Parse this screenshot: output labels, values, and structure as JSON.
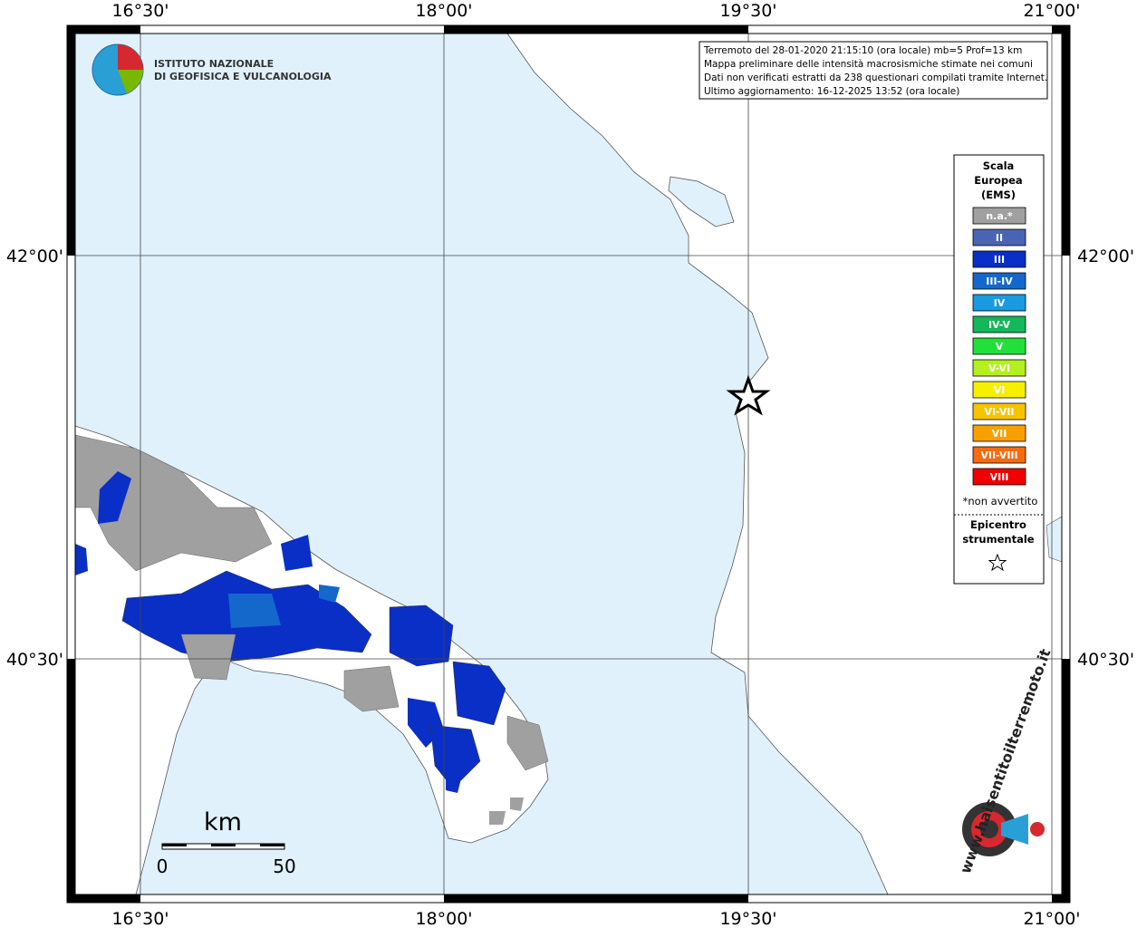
{
  "header": {
    "lines": [
      "Terremoto del 28-01-2020 21:15:10 (ora locale) mb=5 Prof=13 km",
      "Mappa preliminare delle intensità macrosismiche stimate nei comuni",
      "Dati non verificati estratti da 238 questionari compilati tramite Internet.",
      "Ultimo aggiornamento: 16-12-2025 13:52 (ora locale)"
    ]
  },
  "logo": {
    "name_lines": [
      "ISTITUTO NAZIONALE",
      "DI GEOFISICA E VULCANOLOGIA"
    ],
    "site": "www.haisentitoilterremoto.it"
  },
  "graticule": {
    "longitudes": [
      "16°30'",
      "18°00'",
      "19°30'",
      "21°00'"
    ],
    "latitudes": [
      "42°00'",
      "40°30'"
    ]
  },
  "legend": {
    "title_lines": [
      "Scala",
      "Europea",
      "(EMS)"
    ],
    "items": [
      {
        "label": "n.a.*",
        "color": "#a0a0a0"
      },
      {
        "label": "II",
        "color": "#4a64b4"
      },
      {
        "label": "III",
        "color": "#0a2fc6"
      },
      {
        "label": "III-IV",
        "color": "#1468cc"
      },
      {
        "label": "IV",
        "color": "#1a9ae0"
      },
      {
        "label": "IV-V",
        "color": "#12b85a"
      },
      {
        "label": "V",
        "color": "#22e03a"
      },
      {
        "label": "V-VI",
        "color": "#b4f01e"
      },
      {
        "label": "VI",
        "color": "#f6f000"
      },
      {
        "label": "VI-VII",
        "color": "#f8c400"
      },
      {
        "label": "VII",
        "color": "#f8a000"
      },
      {
        "label": "VII-VIII",
        "color": "#f86a10"
      },
      {
        "label": "VIII",
        "color": "#f00000"
      }
    ],
    "note": "*non avvertito",
    "epicenter_lines": [
      "Epicentro",
      "strumentale"
    ]
  },
  "scale_bar": {
    "unit": "km",
    "labels": [
      "0",
      "50"
    ]
  }
}
